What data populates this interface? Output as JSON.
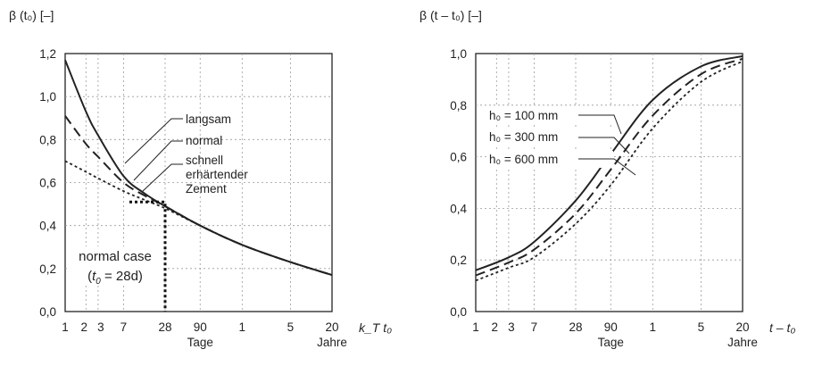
{
  "chart_data": [
    {
      "type": "line",
      "ylabel": "β (t₀) [–]",
      "xlabel": "k_T t₀",
      "x_scale": "log (days)",
      "x_ticks": [
        "1",
        "2",
        "3",
        "7",
        "28",
        "90",
        "1",
        "5",
        "20"
      ],
      "x_tick_days": [
        1,
        2,
        3,
        7,
        28,
        90,
        365,
        1825,
        7300
      ],
      "x_unit_labels": [
        "Tage",
        "Jahre"
      ],
      "y_ticks": [
        "0,0",
        "0,2",
        "0,4",
        "0,6",
        "0,8",
        "1,0",
        "1,2"
      ],
      "ylim": [
        0,
        1.2
      ],
      "grid": true,
      "x": [
        1,
        2,
        3,
        7,
        14,
        28,
        90,
        365,
        1825,
        7300
      ],
      "series": [
        {
          "name": "langsam",
          "style": "solid",
          "values": [
            1.17,
            0.93,
            0.82,
            0.63,
            0.55,
            0.49,
            0.4,
            0.31,
            0.23,
            0.17
          ]
        },
        {
          "name": "normal",
          "style": "dashed",
          "values": [
            0.91,
            0.78,
            0.72,
            0.6,
            0.54,
            0.49,
            0.4,
            0.31,
            0.23,
            0.17
          ]
        },
        {
          "name": "schnell erhärtender Zement",
          "style": "dotted",
          "values": [
            0.7,
            0.65,
            0.62,
            0.56,
            0.52,
            0.48,
            0.4,
            0.31,
            0.23,
            0.17
          ]
        }
      ],
      "annotation": {
        "line1": "normal case",
        "t": "t",
        "sub": "0",
        "rest": " = 28d)",
        "x_day": 28,
        "y_value": 0.51
      }
    },
    {
      "type": "line",
      "ylabel": "β (t – t₀) [–]",
      "xlabel": "t – t₀",
      "x_scale": "log (days)",
      "x_ticks": [
        "1",
        "2",
        "3",
        "7",
        "28",
        "90",
        "1",
        "5",
        "20"
      ],
      "x_tick_days": [
        1,
        2,
        3,
        7,
        28,
        90,
        365,
        1825,
        7300
      ],
      "x_unit_labels": [
        "Tage",
        "Jahre"
      ],
      "y_ticks": [
        "0,0",
        "0,2",
        "0,4",
        "0,6",
        "0,8",
        "1,0"
      ],
      "ylim": [
        0,
        1.0
      ],
      "grid": true,
      "x": [
        1,
        3,
        7,
        28,
        90,
        365,
        1825,
        7300
      ],
      "series": [
        {
          "name": "h₀ = 100 mm",
          "style": "solid",
          "values": [
            0.16,
            0.21,
            0.27,
            0.43,
            0.61,
            0.82,
            0.95,
            0.99
          ]
        },
        {
          "name": "h₀ = 300 mm",
          "style": "dashed",
          "values": [
            0.14,
            0.19,
            0.24,
            0.38,
            0.55,
            0.76,
            0.92,
            0.98
          ]
        },
        {
          "name": "h₀ = 600 mm",
          "style": "dotted",
          "values": [
            0.12,
            0.17,
            0.21,
            0.34,
            0.49,
            0.71,
            0.89,
            0.97
          ]
        }
      ]
    }
  ]
}
